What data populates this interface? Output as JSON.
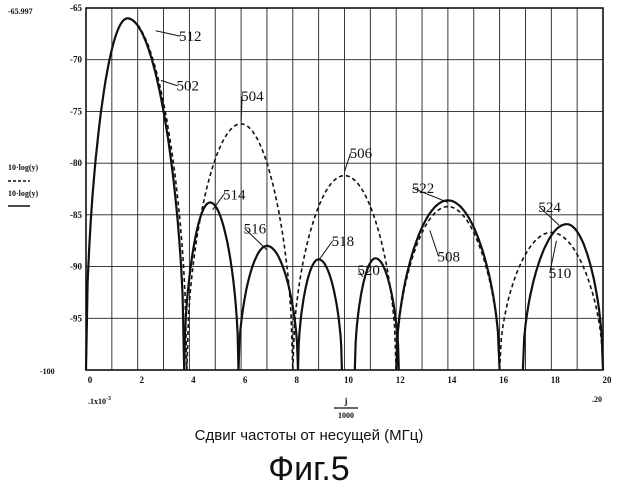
{
  "chart_data": {
    "type": "line",
    "title": "Фиг.5",
    "xlabel": "Сдвиг частоты от несущей (МГц)",
    "xlim": [
      0,
      20
    ],
    "ylim": [
      -100,
      -65
    ],
    "xticks": [
      "0",
      "2",
      "4",
      "6",
      "8",
      "10",
      "12",
      "14",
      "16",
      "18",
      "20"
    ],
    "yticks": [
      "-65",
      "-70",
      "-75",
      "-80",
      "-85",
      "-90",
      "-95",
      "-100"
    ],
    "ytop_readout": "-65.997",
    "ybottom_readout": "-100",
    "xleft_readout": ".1x10",
    "xleft_exp": "-3",
    "xright_readout": ".20",
    "xunit_num": "j",
    "xunit_den": "1000",
    "ylabel_dashed": "10·log(y)",
    "ylabel_solid": "10·log(y)",
    "grid": true,
    "series": [
      {
        "style": "solid",
        "lobes": [
          {
            "center": 1.6,
            "peak": -66.0,
            "zero_left": 0.0,
            "zero_right": 3.8
          },
          {
            "center": 4.8,
            "peak": -83.8,
            "zero_left": 3.8,
            "zero_right": 5.9
          },
          {
            "center": 7.0,
            "peak": -88.0,
            "zero_left": 5.9,
            "zero_right": 8.2
          },
          {
            "center": 9.0,
            "peak": -89.3,
            "zero_left": 8.2,
            "zero_right": 9.9
          },
          {
            "center": 11.2,
            "peak": -89.2,
            "zero_left": 10.4,
            "zero_right": 12.1
          },
          {
            "center": 14.0,
            "peak": -83.6,
            "zero_left": 12.0,
            "zero_right": 16.0
          },
          {
            "center": 18.6,
            "peak": -85.9,
            "zero_left": 16.9,
            "zero_right": 20.0
          }
        ]
      },
      {
        "style": "dashed",
        "lobes": [
          {
            "center": 1.6,
            "peak": -66.0,
            "zero_left": 0.0,
            "zero_right": 3.9
          },
          {
            "center": 6.0,
            "peak": -76.2,
            "zero_left": 3.9,
            "zero_right": 8.0
          },
          {
            "center": 10.0,
            "peak": -81.2,
            "zero_left": 8.0,
            "zero_right": 12.0
          },
          {
            "center": 14.0,
            "peak": -84.2,
            "zero_left": 12.0,
            "zero_right": 16.0
          },
          {
            "center": 18.0,
            "peak": -86.7,
            "zero_left": 16.0,
            "zero_right": 20.0
          }
        ]
      }
    ],
    "annotations": [
      {
        "label": "512",
        "x": 3.6,
        "y": -68.2
      },
      {
        "label": "502",
        "x": 3.5,
        "y": -73.0
      },
      {
        "label": "504",
        "x": 6.0,
        "y": -74.0
      },
      {
        "label": "506",
        "x": 10.2,
        "y": -79.5
      },
      {
        "label": "514",
        "x": 5.3,
        "y": -83.5
      },
      {
        "label": "516",
        "x": 6.1,
        "y": -86.8
      },
      {
        "label": "518",
        "x": 9.5,
        "y": -88.0
      },
      {
        "label": "520",
        "x": 10.5,
        "y": -90.8
      },
      {
        "label": "522",
        "x": 12.6,
        "y": -82.9
      },
      {
        "label": "508",
        "x": 13.6,
        "y": -89.5
      },
      {
        "label": "524",
        "x": 17.5,
        "y": -84.7
      },
      {
        "label": "510",
        "x": 17.9,
        "y": -91.1
      }
    ]
  }
}
